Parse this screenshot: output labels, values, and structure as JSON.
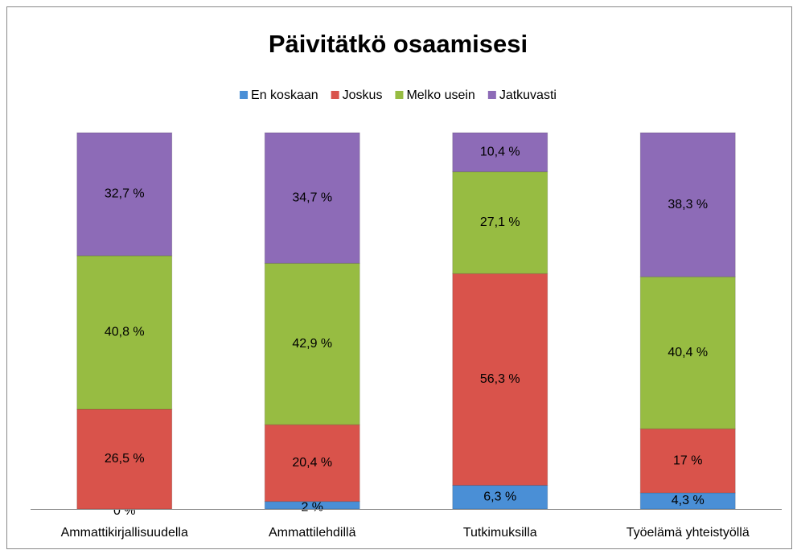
{
  "chart_data": {
    "type": "stacked_bar",
    "title": "Päivitätkö osaamisesi",
    "categories": [
      "Ammattikirjallisuudella",
      "Ammattilehdillä",
      "Tutkimuksilla",
      "Työelämä yhteistyöllä"
    ],
    "series": [
      {
        "name": "En koskaan",
        "color": "#4a8fd6",
        "values": [
          0,
          2,
          6.3,
          4.3
        ],
        "value_labels": [
          "0 %",
          "2 %",
          "6,3 %",
          "4,3 %"
        ]
      },
      {
        "name": "Joskus",
        "color": "#d9534b",
        "values": [
          26.5,
          20.4,
          56.3,
          17
        ],
        "value_labels": [
          "26,5 %",
          "20,4 %",
          "56,3 %",
          "17 %"
        ]
      },
      {
        "name": "Melko usein",
        "color": "#97bc42",
        "values": [
          40.8,
          42.9,
          27.1,
          40.4
        ],
        "value_labels": [
          "40,8 %",
          "42,9 %",
          "27,1 %",
          "40,4 %"
        ]
      },
      {
        "name": "Jatkuvasti",
        "color": "#8d6bb7",
        "values": [
          32.7,
          34.7,
          10.4,
          38.3
        ],
        "value_labels": [
          "32,7 %",
          "34,7 %",
          "10,4 %",
          "38,3 %"
        ]
      }
    ],
    "legend": "top"
  }
}
